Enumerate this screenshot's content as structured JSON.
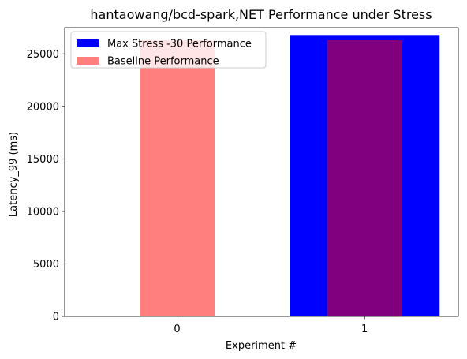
{
  "chart_data": {
    "type": "bar",
    "title": "hantaowang/bcd-spark,NET Performance under Stress",
    "xlabel": "Experiment #",
    "ylabel": "Latency_99 (ms)",
    "categories": [
      "0",
      "1"
    ],
    "ylim": [
      0,
      27500
    ],
    "yticks": [
      0,
      5000,
      10000,
      15000,
      20000,
      25000
    ],
    "xlim": [
      -0.6,
      1.5
    ],
    "grid": false,
    "legend_position": "top-left",
    "series": [
      {
        "name": "Max Stress -30 Performance",
        "color": "#0000ff",
        "opacity": 1.0,
        "bar_width": 0.8,
        "x": [
          1
        ],
        "values": [
          26800
        ]
      },
      {
        "name": "Baseline Performance",
        "color": "#ff0000",
        "opacity": 0.5,
        "bar_width": 0.4,
        "x": [
          0,
          1
        ],
        "values": [
          26300,
          26300
        ]
      }
    ]
  }
}
